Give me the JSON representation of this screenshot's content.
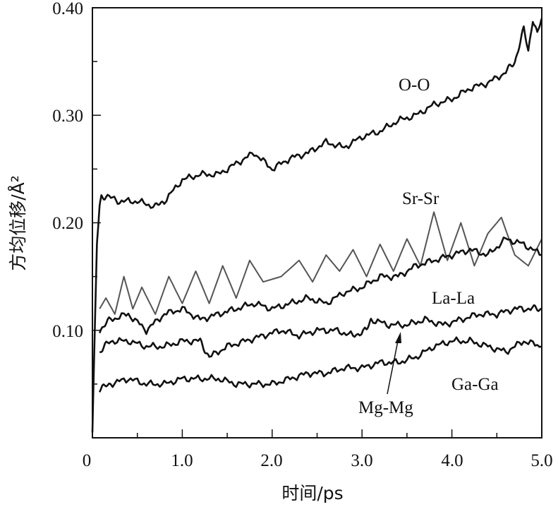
{
  "chart_data": {
    "type": "line",
    "xlabel": "时间/ps",
    "ylabel": "方均位移/Å²",
    "xlim": [
      0,
      5.0
    ],
    "ylim": [
      0,
      0.4
    ],
    "x_ticks": [
      "0",
      "1.0",
      "2.0",
      "3.0",
      "4.0",
      "5.0"
    ],
    "y_ticks": [
      "0.10",
      "0.20",
      "0.30",
      "0.40"
    ],
    "grid": false,
    "series": [
      {
        "name": "O-O",
        "color": "#111111",
        "x": [
          0,
          0.05,
          0.08,
          0.1,
          0.15,
          0.3,
          0.5,
          0.7,
          0.8,
          1.0,
          1.2,
          1.4,
          1.6,
          1.8,
          2.0,
          2.2,
          2.4,
          2.6,
          2.8,
          3.0,
          3.2,
          3.4,
          3.6,
          3.8,
          4.0,
          4.2,
          4.4,
          4.6,
          4.7,
          4.8,
          4.85,
          4.9,
          4.95,
          5.0
        ],
        "y": [
          0.005,
          0.18,
          0.215,
          0.225,
          0.225,
          0.22,
          0.22,
          0.215,
          0.22,
          0.24,
          0.245,
          0.245,
          0.255,
          0.265,
          0.25,
          0.26,
          0.265,
          0.275,
          0.27,
          0.28,
          0.285,
          0.295,
          0.3,
          0.31,
          0.315,
          0.325,
          0.33,
          0.34,
          0.35,
          0.38,
          0.36,
          0.39,
          0.375,
          0.39
        ]
      },
      {
        "name": "Sr-Sr",
        "color": "#555555",
        "x": [
          0.08,
          0.15,
          0.25,
          0.35,
          0.45,
          0.55,
          0.7,
          0.85,
          1.0,
          1.15,
          1.3,
          1.45,
          1.6,
          1.75,
          1.9,
          2.1,
          2.3,
          2.45,
          2.6,
          2.75,
          2.9,
          3.05,
          3.2,
          3.35,
          3.5,
          3.65,
          3.8,
          3.95,
          4.1,
          4.25,
          4.4,
          4.55,
          4.7,
          4.85,
          5.0
        ],
        "y": [
          0.12,
          0.13,
          0.115,
          0.15,
          0.12,
          0.14,
          0.115,
          0.15,
          0.125,
          0.155,
          0.125,
          0.16,
          0.13,
          0.165,
          0.145,
          0.15,
          0.165,
          0.145,
          0.17,
          0.155,
          0.175,
          0.15,
          0.18,
          0.155,
          0.185,
          0.16,
          0.21,
          0.165,
          0.2,
          0.16,
          0.19,
          0.205,
          0.17,
          0.16,
          0.185
        ]
      },
      {
        "name": "La-La",
        "color": "#111111",
        "x": [
          0.08,
          0.2,
          0.4,
          0.6,
          0.8,
          1.0,
          1.2,
          1.4,
          1.6,
          1.8,
          2.0,
          2.2,
          2.4,
          2.6,
          2.8,
          3.0,
          3.2,
          3.4,
          3.6,
          3.8,
          4.0,
          4.2,
          4.4,
          4.6,
          4.8,
          5.0
        ],
        "y": [
          0.1,
          0.11,
          0.115,
          0.1,
          0.115,
          0.12,
          0.11,
          0.115,
          0.12,
          0.125,
          0.12,
          0.125,
          0.13,
          0.125,
          0.135,
          0.14,
          0.15,
          0.15,
          0.16,
          0.165,
          0.17,
          0.175,
          0.17,
          0.185,
          0.18,
          0.17
        ]
      },
      {
        "name": "Mg-Mg",
        "color": "#111111",
        "x": [
          0.08,
          0.2,
          0.4,
          0.6,
          0.8,
          1.0,
          1.2,
          1.3,
          1.5,
          1.7,
          1.9,
          2.1,
          2.3,
          2.5,
          2.7,
          2.9,
          3.05,
          3.1,
          3.3,
          3.5,
          3.7,
          3.9,
          4.1,
          4.3,
          4.5,
          4.7,
          4.9,
          5.0
        ],
        "y": [
          0.08,
          0.09,
          0.09,
          0.085,
          0.085,
          0.09,
          0.09,
          0.075,
          0.085,
          0.09,
          0.095,
          0.1,
          0.095,
          0.1,
          0.1,
          0.095,
          0.1,
          0.11,
          0.105,
          0.105,
          0.11,
          0.105,
          0.11,
          0.115,
          0.115,
          0.12,
          0.12,
          0.12
        ]
      },
      {
        "name": "Ga-Ga",
        "color": "#111111",
        "x": [
          0.08,
          0.2,
          0.4,
          0.6,
          0.8,
          1.0,
          1.2,
          1.4,
          1.6,
          1.8,
          2.0,
          2.2,
          2.4,
          2.6,
          2.8,
          3.0,
          3.2,
          3.4,
          3.6,
          3.8,
          4.0,
          4.2,
          4.4,
          4.6,
          4.8,
          5.0
        ],
        "y": [
          0.045,
          0.05,
          0.055,
          0.05,
          0.05,
          0.055,
          0.055,
          0.055,
          0.05,
          0.05,
          0.05,
          0.055,
          0.06,
          0.06,
          0.065,
          0.065,
          0.07,
          0.07,
          0.075,
          0.085,
          0.09,
          0.09,
          0.085,
          0.08,
          0.09,
          0.085
        ]
      }
    ],
    "annotations": [
      {
        "text": "O-O"
      },
      {
        "text": "Sr-Sr"
      },
      {
        "text": "La-La"
      },
      {
        "text": "Mg-Mg"
      },
      {
        "text": "Ga-Ga"
      }
    ]
  }
}
